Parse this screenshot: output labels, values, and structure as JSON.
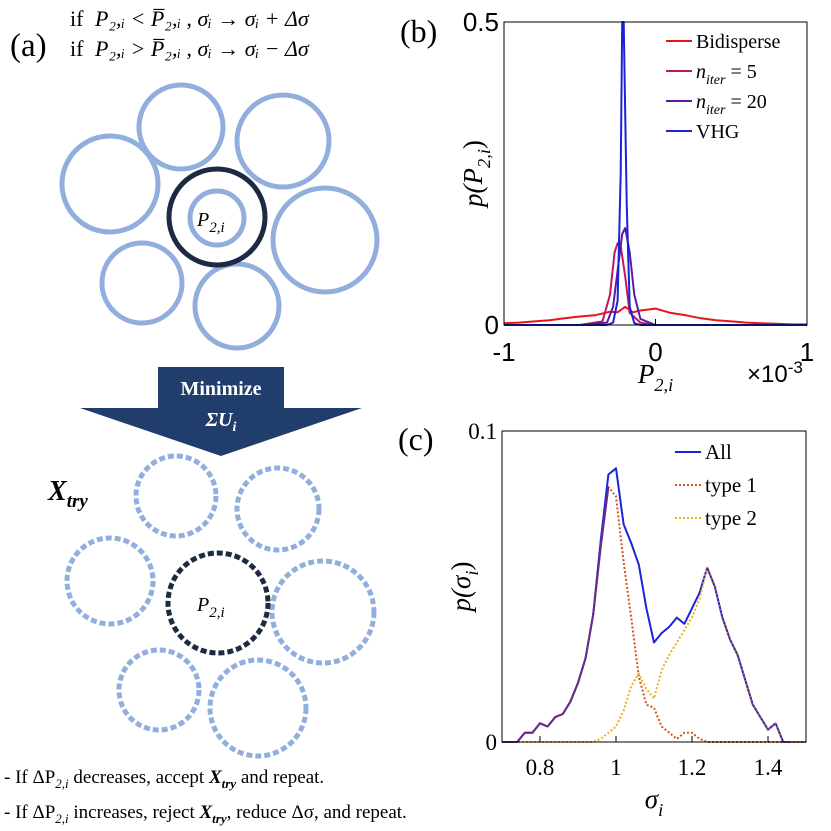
{
  "panel_a": {
    "label": "(a)",
    "rule_if": "if",
    "rule1_cond": "P₂,ᵢ < P̅₂,ᵢ",
    "rule1_action": "σᵢ → σᵢ + Δσ",
    "rule2_cond": "P₂,ᵢ > P̅₂,ᵢ",
    "rule2_action": "σᵢ → σᵢ − Δσ",
    "center_label": "P",
    "center_sub": "2,i",
    "arrow_line1": "Minimize",
    "arrow_line2": "ΣU",
    "arrow_line2_sub": "i",
    "xtry": "X",
    "xtry_sub": "try",
    "center_label2": "P",
    "center_sub2": "2,i",
    "bullet1": {
      "pre": "- If ΔP",
      "sub": "2,i",
      "mid": " decreases, accept ",
      "x": "X",
      "xsub": "try",
      "post": " and repeat."
    },
    "bullet2": {
      "pre": "- If ΔP",
      "sub": "2,i",
      "mid": " increases, reject ",
      "x": "X",
      "xsub": "try",
      "post": ", reduce Δσ, and repeat."
    },
    "colors": {
      "circle": "#92aedc",
      "center": "#1c2a42",
      "arrow": "#213d6b"
    }
  },
  "panel_b_label": "(b)",
  "panel_c_label": "(c)",
  "chart_data": [
    {
      "panel": "(b)",
      "type": "line",
      "title": "",
      "xlabel": "P",
      "xlabel_sub": "2,i",
      "ylabel_pre": "p(P",
      "ylabel_sub": "2,i",
      "ylabel_post": ")",
      "xlim": [
        -1,
        1
      ],
      "ylim": [
        0,
        0.5
      ],
      "xticks": [
        "-1",
        "0",
        "1"
      ],
      "yticks": [
        "0",
        "0.5"
      ],
      "x_multiplier": "×10",
      "x_multiplier_exp": "-3",
      "legend": "top-right",
      "series": [
        {
          "name": "Bidisperse",
          "color": "#e8141b",
          "x": [
            -1,
            -0.9,
            -0.8,
            -0.7,
            -0.6,
            -0.5,
            -0.4,
            -0.3,
            -0.25,
            -0.2,
            -0.15,
            -0.1,
            0,
            0.1,
            0.2,
            0.3,
            0.4,
            0.5,
            0.6,
            0.7,
            0.8,
            0.9,
            1
          ],
          "y": [
            0.003,
            0.004,
            0.006,
            0.008,
            0.011,
            0.014,
            0.016,
            0.022,
            0.021,
            0.03,
            0.021,
            0.024,
            0.027,
            0.02,
            0.016,
            0.011,
            0.008,
            0.006,
            0.004,
            0.003,
            0.002,
            0.001,
            0.001
          ]
        },
        {
          "name": "niter5",
          "label_main": "n",
          "label_sub": "iter",
          "label_tail": " = 5",
          "color": "#c2185b",
          "x": [
            -1,
            -0.5,
            -0.35,
            -0.3,
            -0.27,
            -0.25,
            -0.23,
            -0.2,
            -0.17,
            -0.1,
            0,
            0.1,
            1
          ],
          "y": [
            0,
            0,
            0.006,
            0.05,
            0.12,
            0.135,
            0.13,
            0.08,
            0.02,
            0.004,
            0,
            0,
            0
          ]
        },
        {
          "name": "niter20",
          "label_main": "n",
          "label_sub": "iter",
          "label_tail": " = 20",
          "color": "#5f1aa4",
          "x": [
            -1,
            -0.5,
            -0.32,
            -0.28,
            -0.25,
            -0.22,
            -0.2,
            -0.17,
            -0.14,
            -0.1,
            0,
            1
          ],
          "y": [
            0,
            0,
            0.004,
            0.03,
            0.09,
            0.15,
            0.16,
            0.12,
            0.05,
            0.01,
            0,
            0
          ]
        },
        {
          "name": "VHG",
          "color": "#1724d8",
          "x": [
            -1,
            -0.32,
            -0.28,
            -0.25,
            -0.23,
            -0.22,
            -0.21,
            -0.19,
            -0.17,
            -0.14,
            -0.1,
            1
          ],
          "y": [
            0,
            0,
            0.004,
            0.04,
            0.25,
            0.5,
            0.5,
            0.2,
            0.03,
            0.003,
            0,
            0
          ]
        }
      ]
    },
    {
      "panel": "(c)",
      "type": "line",
      "title": "",
      "xlabel": "σ",
      "xlabel_sub": "i",
      "ylabel_pre": "p(σ",
      "ylabel_sub": "i",
      "ylabel_post": ")",
      "xlim": [
        0.7,
        1.5
      ],
      "ylim": [
        0,
        0.1
      ],
      "xticks": [
        "0.8",
        "1",
        "1.2",
        "1.4"
      ],
      "xtick_values": [
        0.8,
        1,
        1.2,
        1.4
      ],
      "yticks": [
        "0",
        "0.1"
      ],
      "legend": "top-right",
      "series": [
        {
          "name": "All",
          "color": "#1826d8",
          "dash": "",
          "x": [
            0.7,
            0.74,
            0.76,
            0.78,
            0.8,
            0.82,
            0.84,
            0.86,
            0.88,
            0.9,
            0.92,
            0.94,
            0.96,
            0.98,
            1.0,
            1.02,
            1.04,
            1.06,
            1.08,
            1.1,
            1.12,
            1.14,
            1.16,
            1.18,
            1.2,
            1.22,
            1.24,
            1.26,
            1.28,
            1.3,
            1.32,
            1.34,
            1.36,
            1.38,
            1.4,
            1.42,
            1.44,
            1.5
          ],
          "y": [
            0,
            0,
            0.003,
            0.003,
            0.006,
            0.005,
            0.008,
            0.009,
            0.013,
            0.019,
            0.027,
            0.041,
            0.065,
            0.086,
            0.088,
            0.07,
            0.064,
            0.057,
            0.043,
            0.032,
            0.035,
            0.037,
            0.04,
            0.038,
            0.043,
            0.048,
            0.056,
            0.05,
            0.04,
            0.033,
            0.028,
            0.02,
            0.012,
            0.008,
            0.004,
            0.006,
            0,
            0
          ]
        },
        {
          "name": "type 1",
          "color": "#d4531a",
          "dash": "2,2",
          "x": [
            0.7,
            0.74,
            0.76,
            0.78,
            0.8,
            0.82,
            0.84,
            0.86,
            0.88,
            0.9,
            0.92,
            0.94,
            0.96,
            0.98,
            1.0,
            1.02,
            1.04,
            1.06,
            1.08,
            1.1,
            1.12,
            1.14,
            1.16,
            1.18,
            1.2,
            1.22,
            1.24,
            1.5
          ],
          "y": [
            0,
            0,
            0.003,
            0.003,
            0.006,
            0.005,
            0.008,
            0.009,
            0.013,
            0.019,
            0.027,
            0.041,
            0.063,
            0.082,
            0.079,
            0.058,
            0.04,
            0.021,
            0.012,
            0.011,
            0.005,
            0.003,
            0.001,
            0.003,
            0.003,
            0.001,
            0,
            0
          ]
        },
        {
          "name": "type 2",
          "color": "#f1b01a",
          "dash": "2,2",
          "x": [
            0.7,
            0.94,
            0.96,
            0.98,
            1.0,
            1.02,
            1.04,
            1.06,
            1.08,
            1.1,
            1.12,
            1.14,
            1.16,
            1.18,
            1.2,
            1.22,
            1.24,
            1.26,
            1.28,
            1.3,
            1.32,
            1.34,
            1.36,
            1.38,
            1.4,
            1.42,
            1.44,
            1.5
          ],
          "y": [
            0,
            0,
            0.001,
            0.003,
            0.005,
            0.01,
            0.018,
            0.022,
            0.017,
            0.014,
            0.023,
            0.028,
            0.032,
            0.036,
            0.04,
            0.046,
            0.056,
            0.05,
            0.04,
            0.033,
            0.028,
            0.02,
            0.012,
            0.008,
            0.004,
            0.006,
            0,
            0
          ]
        },
        {
          "name": "purple-overlap",
          "color": "#6a2a8a",
          "dash": "",
          "legend": false,
          "x": [
            0.7,
            0.74,
            0.76,
            0.78,
            0.8,
            0.82,
            0.84,
            0.86,
            0.88,
            0.9,
            0.92,
            0.94,
            0.96,
            0.98
          ],
          "y": [
            0,
            0,
            0.003,
            0.003,
            0.006,
            0.005,
            0.008,
            0.009,
            0.013,
            0.019,
            0.027,
            0.041,
            0.063,
            0.082
          ]
        },
        {
          "name": "purple-overlap-2",
          "color": "#6a2a8a",
          "dash": "2,2",
          "legend": false,
          "x": [
            1.24,
            1.26,
            1.28,
            1.3,
            1.32,
            1.34,
            1.36,
            1.38,
            1.4,
            1.42,
            1.44,
            1.46
          ],
          "y": [
            0.056,
            0.05,
            0.04,
            0.033,
            0.028,
            0.02,
            0.012,
            0.008,
            0.004,
            0.006,
            0,
            0
          ]
        }
      ]
    }
  ]
}
